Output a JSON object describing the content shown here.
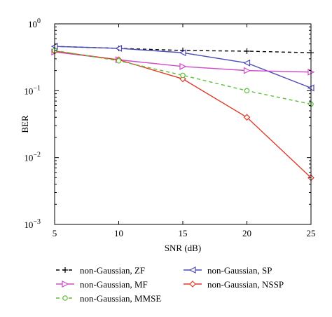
{
  "chart_data": {
    "type": "line",
    "title": "",
    "xlabel": "SNR (dB)",
    "ylabel": "BER",
    "xlim": [
      5,
      25
    ],
    "ylim": [
      0.001,
      1
    ],
    "yscale": "log",
    "grid": false,
    "x": [
      5,
      10,
      15,
      20,
      25
    ],
    "x_ticks": [
      "5",
      "10",
      "15",
      "20",
      "25"
    ],
    "y_ticks": [
      {
        "base": "10",
        "exp": "-3"
      },
      {
        "base": "10",
        "exp": "-2"
      },
      {
        "base": "10",
        "exp": "-1"
      },
      {
        "base": "10",
        "exp": "0"
      }
    ],
    "legend_position": "bottom",
    "series": [
      {
        "name": "non-Gaussian, ZF",
        "values": [
          0.46,
          0.43,
          0.4,
          0.39,
          0.37
        ],
        "color": "#000000",
        "marker": "plus",
        "dash": "dashed"
      },
      {
        "name": "non-Gaussian, SP",
        "values": [
          0.46,
          0.43,
          0.37,
          0.26,
          0.11
        ],
        "color": "#4a4ab8",
        "marker": "triangle-left",
        "dash": "solid"
      },
      {
        "name": "non-Gaussian, MF",
        "values": [
          0.38,
          0.29,
          0.23,
          0.2,
          0.19
        ],
        "color": "#d24bc8",
        "marker": "triangle-right",
        "dash": "solid"
      },
      {
        "name": "non-Gaussian, NSSP",
        "values": [
          0.39,
          0.29,
          0.15,
          0.04,
          0.005
        ],
        "color": "#e03a2a",
        "marker": "diamond",
        "dash": "solid"
      },
      {
        "name": "non-Gaussian, MMSE",
        "values": [
          0.4,
          0.28,
          0.17,
          0.1,
          0.063
        ],
        "color": "#5cbf3a",
        "marker": "circle",
        "dash": "dashed"
      }
    ]
  }
}
